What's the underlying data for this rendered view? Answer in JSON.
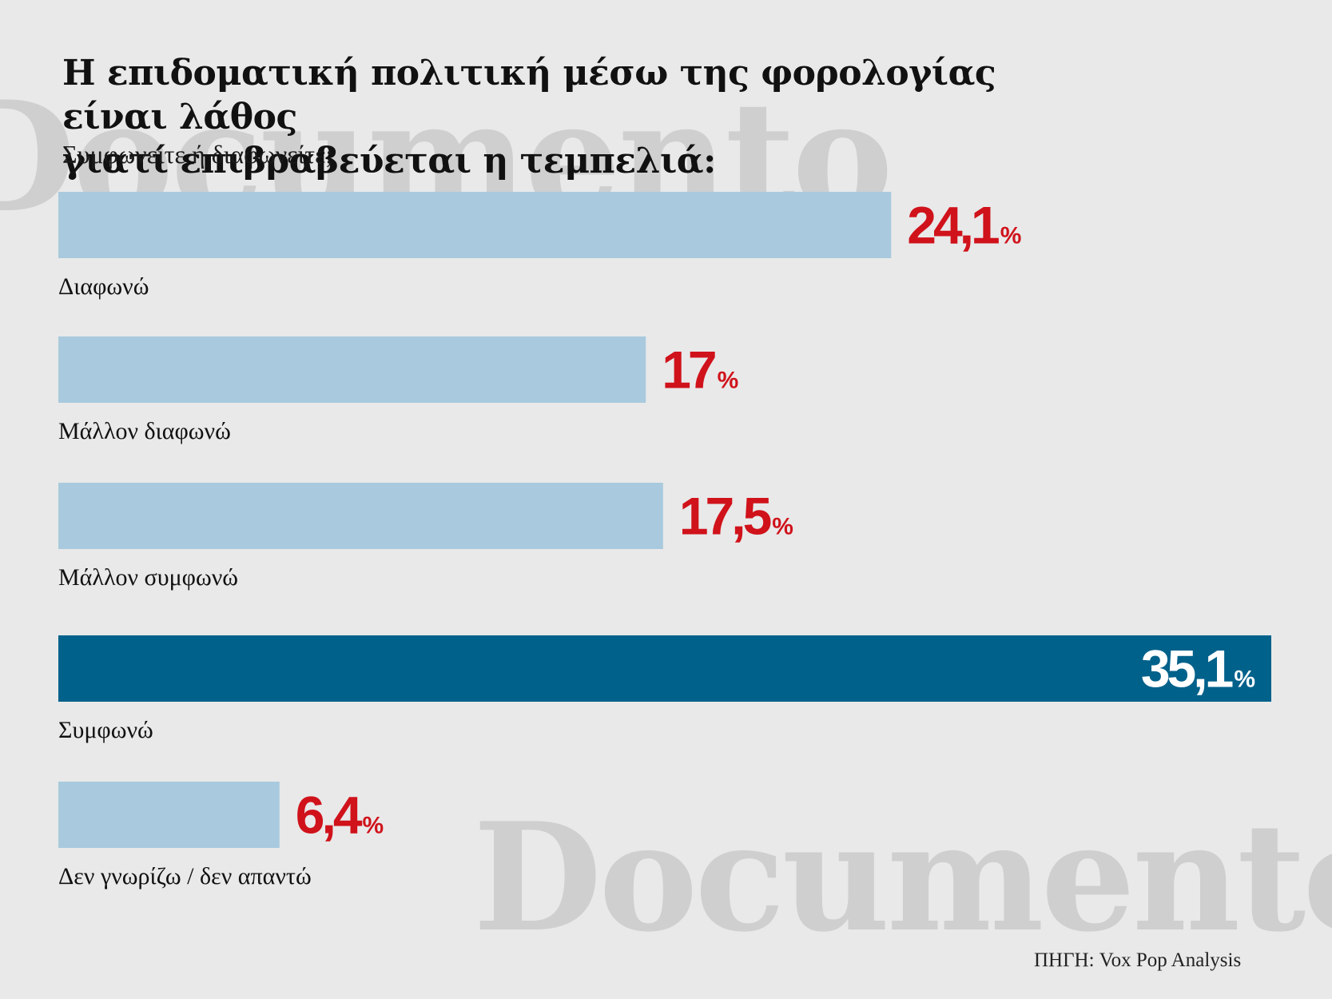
{
  "watermark": {
    "text": "Documento"
  },
  "header": {
    "title_line1": "Η επιδοματική πολιτική μέσω της φορολογίας είναι λάθος",
    "title_line2": "γιατί επιβραβεύεται η τεμπελιά:",
    "subtitle": "Συμφωνείτε ή διαφωνείτε;"
  },
  "colors": {
    "bar_default": "#a9cade",
    "bar_highlight": "#00618a",
    "value_default": "#d0121b",
    "value_highlight": "#ffffff",
    "watermark": "#cfcfcf"
  },
  "chart_data": {
    "type": "bar",
    "orientation": "horizontal",
    "categories": [
      "Διαφωνώ",
      "Μάλλον διαφωνώ",
      "Μάλλον συμφωνώ",
      "Συμφωνώ",
      "Δεν γνωρίζω / δεν απαντώ"
    ],
    "values": [
      24.1,
      17,
      17.5,
      35.1,
      6.4
    ],
    "value_labels": [
      "24,1",
      "17",
      "17,5",
      "35,1",
      "6,4"
    ],
    "unit": "%",
    "highlight_index": 3,
    "xlim": [
      0,
      35.1
    ],
    "grid": false,
    "legend": "none"
  },
  "footer": {
    "source": "ΠΗΓΗ: Vox Pop Analysis"
  }
}
